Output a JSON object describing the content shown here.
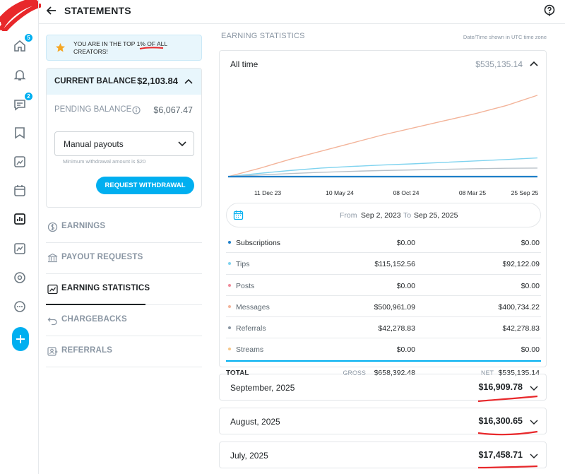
{
  "header": {
    "title": "STATEMENTS"
  },
  "rail": {
    "home_badge": "5",
    "messages_badge": "2"
  },
  "banner": {
    "text": "YOU ARE IN THE TOP 1% OF ALL CREATORS!"
  },
  "balance": {
    "current_label": "CURRENT BALANCE",
    "current_value": "$2,103.84",
    "pending_label": "PENDING BALANCE",
    "pending_value": "$6,067.47",
    "payout_select": "Manual payouts",
    "min_note": "Minimum withdrawal amount is $20",
    "request_button": "REQUEST WITHDRAWAL"
  },
  "menu": {
    "items": [
      {
        "label": "EARNINGS",
        "icon": "dollar-circle-icon"
      },
      {
        "label": "PAYOUT REQUESTS",
        "icon": "bank-icon"
      },
      {
        "label": "EARNING STATISTICS",
        "icon": "trend-chart-icon",
        "active": true
      },
      {
        "label": "CHARGEBACKS",
        "icon": "undo-icon"
      },
      {
        "label": "REFERRALS",
        "icon": "referral-icon"
      }
    ]
  },
  "stats": {
    "section_title": "EARNING STATISTICS",
    "timezone_note": "Date/Time shown in UTC time zone",
    "period_label": "All time",
    "period_total": "$535,135.14",
    "from_label": "From",
    "from_date": "Sep 2, 2023",
    "to_label": "To",
    "to_date": "Sep 25, 2025",
    "rows": [
      {
        "name": "Subscriptions",
        "gross": "$0.00",
        "net": "$0.00",
        "color": "#1f7fc9"
      },
      {
        "name": "Tips",
        "gross": "$115,152.56",
        "net": "$92,122.09",
        "color": "#7fd3ef"
      },
      {
        "name": "Posts",
        "gross": "$0.00",
        "net": "$0.00",
        "color": "#f08a9a"
      },
      {
        "name": "Messages",
        "gross": "$500,961.09",
        "net": "$400,734.22",
        "color": "#f3b49a"
      },
      {
        "name": "Referrals",
        "gross": "$42,278.83",
        "net": "$42,278.83",
        "color": "#8a96a3"
      },
      {
        "name": "Streams",
        "gross": "$0.00",
        "net": "$0.00",
        "color": "#f6c78a"
      }
    ],
    "total": {
      "label": "TOTAL",
      "gross_label": "GROSS",
      "gross_value": "$658,392.48",
      "net_label": "NET",
      "net_value": "$535,135.14"
    }
  },
  "chart_data": {
    "type": "line",
    "x_ticks": [
      "11 Dec 23",
      "10 May 24",
      "08 Oct 24",
      "08 Mar 25",
      "25 Sep 25"
    ],
    "x": [
      0,
      1,
      2,
      3,
      4,
      5,
      6,
      7,
      8,
      9,
      10
    ],
    "series": [
      {
        "name": "Messages",
        "color": "#f3b49a",
        "values": [
          0,
          40,
          85,
          125,
          165,
          205,
          240,
          275,
          310,
          350,
          400
        ]
      },
      {
        "name": "Tips",
        "color": "#7fd3ef",
        "values": [
          0,
          16,
          30,
          42,
          50,
          57,
          63,
          70,
          77,
          84,
          92
        ]
      },
      {
        "name": "Referrals",
        "color": "#b9c1c8",
        "values": [
          0,
          8,
          15,
          21,
          26,
          30,
          33,
          36,
          39,
          41,
          42
        ]
      },
      {
        "name": "Subscriptions",
        "color": "#1f7fc9",
        "values": [
          0,
          0,
          0,
          0,
          0,
          0,
          0,
          0,
          0,
          0,
          0
        ]
      }
    ],
    "ylim": [
      0,
      410
    ]
  },
  "months": [
    {
      "label": "September, 2025",
      "value": "$16,909.78"
    },
    {
      "label": "August, 2025",
      "value": "$16,300.65"
    },
    {
      "label": "July, 2025",
      "value": "$17,458.71"
    }
  ]
}
